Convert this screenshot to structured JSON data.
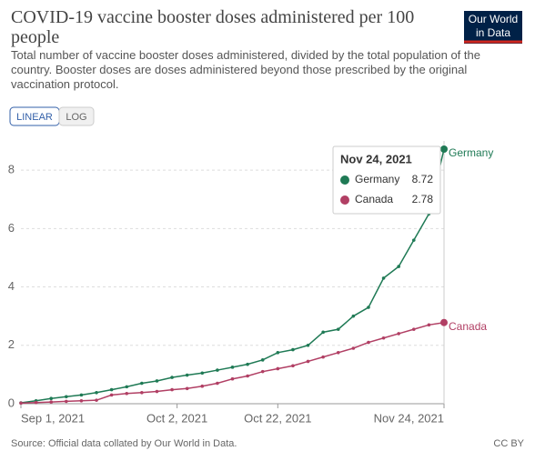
{
  "chart_data": {
    "type": "line",
    "title": "COVID-19 vaccine booster doses administered per 100 people",
    "subtitle": "Total number of vaccine booster doses administered, divided by the total population of the country. Booster doses are doses administered beyond those prescribed by the original vaccination protocol.",
    "logo": [
      "Our World",
      "in Data"
    ],
    "buttons": [
      "LINEAR",
      "LOG"
    ],
    "source": "Source: Official data collated by Our World in Data.",
    "license": "CC BY",
    "x": [
      "2021-09-01",
      "2021-09-04",
      "2021-09-07",
      "2021-09-10",
      "2021-09-13",
      "2021-09-16",
      "2021-09-19",
      "2021-09-22",
      "2021-09-25",
      "2021-09-28",
      "2021-10-01",
      "2021-10-04",
      "2021-10-07",
      "2021-10-10",
      "2021-10-13",
      "2021-10-16",
      "2021-10-19",
      "2021-10-22",
      "2021-10-25",
      "2021-10-28",
      "2021-10-31",
      "2021-11-03",
      "2021-11-06",
      "2021-11-09",
      "2021-11-12",
      "2021-11-15",
      "2021-11-18",
      "2021-11-21",
      "2021-11-24"
    ],
    "series": [
      {
        "name": "Germany",
        "color": "#1f7a55",
        "values": [
          0.03,
          0.1,
          0.18,
          0.24,
          0.3,
          0.38,
          0.48,
          0.58,
          0.7,
          0.78,
          0.9,
          0.98,
          1.05,
          1.15,
          1.25,
          1.35,
          1.5,
          1.75,
          1.85,
          2.0,
          2.45,
          2.55,
          3.0,
          3.3,
          4.3,
          4.7,
          5.6,
          6.5,
          8.72
        ]
      },
      {
        "name": "Canada",
        "color": "#b13f64",
        "values": [
          0.02,
          0.04,
          0.06,
          0.08,
          0.1,
          0.12,
          0.3,
          0.35,
          0.38,
          0.42,
          0.48,
          0.52,
          0.6,
          0.7,
          0.85,
          0.95,
          1.1,
          1.2,
          1.3,
          1.45,
          1.6,
          1.75,
          1.9,
          2.1,
          2.25,
          2.4,
          2.55,
          2.7,
          2.78
        ]
      }
    ],
    "xlim": [
      "2021-09-01",
      "2021-11-24"
    ],
    "xticks": [
      {
        "value": "2021-09-01",
        "label": "Sep 1, 2021"
      },
      {
        "value": "2021-10-02",
        "label": "Oct 2, 2021"
      },
      {
        "value": "2021-10-22",
        "label": "Oct 22, 2021"
      },
      {
        "value": "2021-11-24",
        "label": "Nov 24, 2021"
      }
    ],
    "ylim": [
      0,
      9
    ],
    "yticks": [
      0,
      2,
      4,
      6,
      8
    ],
    "grid": true
  }
}
